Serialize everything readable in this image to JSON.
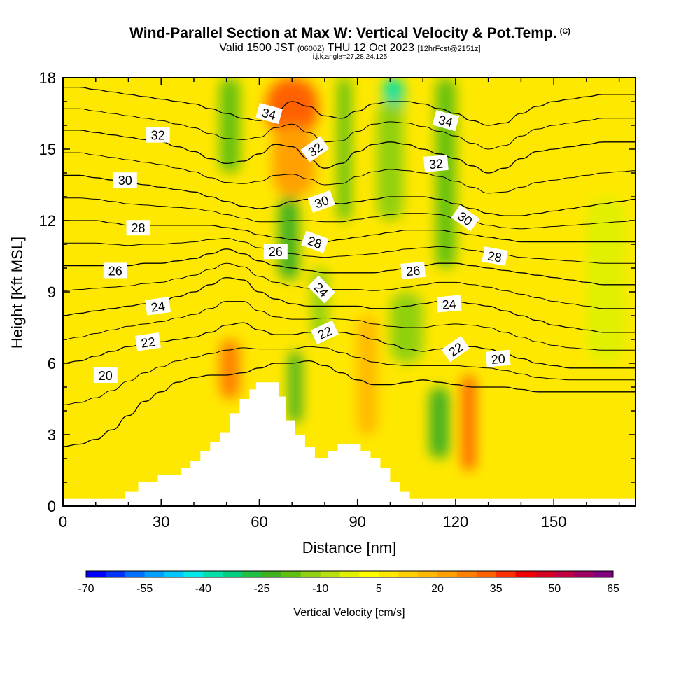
{
  "header": {
    "title": "Wind-Parallel Section at Max W: Vertical Velocity & Pot.Temp.",
    "title_tag": "(C)",
    "valid_prefix": "Valid 1500 JST",
    "valid_zulu": "(0600Z)",
    "valid_date": "THU 12 Oct 2023",
    "forecast_info": "[12hrFcst@2151z]",
    "ijk": "i,j,k,angle=27,28,24,125"
  },
  "chart_data": {
    "type": "heatmap",
    "xlabel": "Distance [nm]",
    "ylabel": "Height [Kft MSL]",
    "xlim": [
      0,
      175
    ],
    "ylim": [
      0,
      18
    ],
    "xticks": [
      0,
      30,
      60,
      90,
      120,
      150
    ],
    "yticks": [
      0,
      3,
      6,
      9,
      12,
      15,
      18
    ],
    "colorbar": {
      "label": "Vertical Velocity [cm/s]",
      "tick_labels": [
        "-70",
        "-55",
        "-40",
        "-25",
        "-10",
        "5",
        "20",
        "35",
        "50",
        "65"
      ],
      "min": -70,
      "max": 65,
      "step": 5,
      "colors": [
        "#0000ff",
        "#0033ff",
        "#0070ff",
        "#00a0ff",
        "#00c8ff",
        "#00e8e8",
        "#00e0a8",
        "#00d080",
        "#20c040",
        "#40b020",
        "#60c010",
        "#90d010",
        "#b8e010",
        "#e0f000",
        "#ffff00",
        "#ffe800",
        "#ffd000",
        "#ffb800",
        "#ffa000",
        "#ff8000",
        "#ff6000",
        "#ff3000",
        "#f00000",
        "#d80020",
        "#c00040",
        "#a00060",
        "#800080"
      ]
    },
    "velocity_field": [
      {
        "x": 0,
        "y": 0,
        "w": 175,
        "h": 18,
        "value": 8
      },
      {
        "x": 0,
        "y": 0,
        "w": 45,
        "h": 4.5,
        "value": 6
      },
      {
        "x": 62,
        "y": 15.5,
        "w": 16,
        "h": 2.5,
        "value": 32
      },
      {
        "x": 64,
        "y": 13,
        "w": 13,
        "h": 3,
        "value": 24
      },
      {
        "x": 48,
        "y": 4.5,
        "w": 6,
        "h": 2.5,
        "value": 28
      },
      {
        "x": 122,
        "y": 1.5,
        "w": 4,
        "h": 4,
        "value": 30
      },
      {
        "x": 90,
        "y": 3,
        "w": 6,
        "h": 5,
        "value": 18
      },
      {
        "x": 66,
        "y": 9.5,
        "w": 6,
        "h": 3.5,
        "value": -22
      },
      {
        "x": 48,
        "y": 14,
        "w": 6,
        "h": 4,
        "value": -18
      },
      {
        "x": 84,
        "y": 12,
        "w": 4,
        "h": 6,
        "value": -20
      },
      {
        "x": 98,
        "y": 16.5,
        "w": 6,
        "h": 1.5,
        "value": -40
      },
      {
        "x": 96,
        "y": 12,
        "w": 8,
        "h": 5,
        "value": -15
      },
      {
        "x": 114,
        "y": 10,
        "w": 6,
        "h": 8,
        "value": -20
      },
      {
        "x": 69,
        "y": 3.5,
        "w": 4,
        "h": 3,
        "value": -25
      },
      {
        "x": 112,
        "y": 2,
        "w": 6,
        "h": 3,
        "value": -22
      },
      {
        "x": 100,
        "y": 6,
        "w": 10,
        "h": 3,
        "value": -12
      },
      {
        "x": 76,
        "y": 7,
        "w": 5,
        "h": 3,
        "value": -15
      },
      {
        "x": 160,
        "y": 6,
        "w": 12,
        "h": 7,
        "value": -5
      }
    ],
    "theta_contours": [
      {
        "level": 20,
        "label": "20",
        "y": [
          2.5,
          2.6,
          2.8,
          3.2,
          3.8,
          4.4,
          4.8,
          5.2,
          5.4,
          5.5,
          5.5,
          5.6,
          5.8,
          6.0,
          6.0,
          6.1,
          5.9,
          5.6,
          5.3,
          5.1,
          5.1,
          5.2,
          5.3,
          5.2,
          5.1,
          5.0,
          5.0,
          5.0,
          4.9,
          4.8,
          4.8,
          4.8,
          4.8,
          4.8,
          4.8,
          4.8
        ]
      },
      {
        "level": 22,
        "label": "22",
        "y": [
          6.0,
          6.1,
          6.3,
          6.5,
          6.7,
          6.8,
          6.9,
          7.0,
          7.1,
          7.3,
          7.6,
          7.7,
          7.4,
          7.2,
          7.2,
          7.3,
          7.4,
          7.3,
          7.2,
          7.0,
          6.8,
          6.6,
          6.5,
          6.6,
          6.7,
          6.7,
          6.6,
          6.4,
          6.2,
          6.0,
          5.9,
          5.8,
          5.8,
          5.8,
          5.8,
          5.8
        ]
      },
      {
        "level": 24,
        "label": "24",
        "y": [
          8.0,
          8.1,
          8.2,
          8.3,
          8.4,
          8.5,
          8.6,
          8.8,
          9.0,
          9.3,
          9.6,
          9.5,
          9.0,
          8.7,
          8.5,
          8.4,
          8.4,
          8.4,
          8.4,
          8.3,
          8.3,
          8.4,
          8.5,
          8.6,
          8.6,
          8.5,
          8.4,
          8.2,
          8.0,
          7.8,
          7.6,
          7.5,
          7.4,
          7.3,
          7.3,
          7.3
        ]
      },
      {
        "level": 26,
        "label": "26",
        "y": [
          10.1,
          10.1,
          10.1,
          10.1,
          10.1,
          10.2,
          10.2,
          10.3,
          10.4,
          10.6,
          10.8,
          10.6,
          10.3,
          10.1,
          10.0,
          9.9,
          9.8,
          9.8,
          9.8,
          9.8,
          9.9,
          10.0,
          10.1,
          10.2,
          10.2,
          10.1,
          10.0,
          9.9,
          9.8,
          9.7,
          9.6,
          9.5,
          9.4,
          9.3,
          9.3,
          9.3
        ]
      },
      {
        "level": 28,
        "label": "28",
        "y": [
          12.0,
          12.0,
          12.0,
          11.9,
          11.8,
          11.8,
          11.8,
          11.8,
          11.8,
          11.8,
          11.7,
          11.6,
          11.4,
          11.3,
          11.2,
          11.1,
          11.1,
          11.2,
          11.3,
          11.4,
          11.5,
          11.6,
          11.6,
          11.6,
          11.5,
          11.4,
          11.3,
          11.2,
          11.1,
          11.1,
          11.1,
          11.1,
          11.1,
          11.1,
          11.1,
          11.1
        ]
      },
      {
        "level": 30,
        "label": "30",
        "y": [
          13.9,
          13.9,
          13.8,
          13.7,
          13.6,
          13.5,
          13.4,
          13.3,
          13.2,
          13.0,
          12.8,
          12.6,
          12.5,
          12.6,
          12.8,
          12.9,
          12.8,
          12.7,
          12.8,
          12.9,
          13.0,
          13.0,
          13.0,
          12.9,
          12.7,
          12.5,
          12.3,
          12.2,
          12.2,
          12.3,
          12.4,
          12.5,
          12.6,
          12.7,
          12.8,
          12.9
        ]
      },
      {
        "level": 32,
        "label": "32",
        "y": [
          15.8,
          15.8,
          15.7,
          15.6,
          15.5,
          15.4,
          15.3,
          15.1,
          14.9,
          14.6,
          14.4,
          14.5,
          14.8,
          15.2,
          15.1,
          14.6,
          14.2,
          14.4,
          14.9,
          15.2,
          15.3,
          15.2,
          15.0,
          14.8,
          14.6,
          14.3,
          14.0,
          14.2,
          14.6,
          14.9,
          15.0,
          15.1,
          15.2,
          15.3,
          15.3,
          15.3
        ]
      },
      {
        "level": 34,
        "label": "34",
        "y": [
          17.6,
          17.6,
          17.5,
          17.4,
          17.3,
          17.2,
          17.1,
          17.0,
          16.9,
          16.7,
          16.5,
          16.3,
          16.2,
          16.6,
          17.0,
          16.8,
          16.4,
          16.3,
          16.6,
          16.9,
          17.0,
          17.0,
          16.9,
          16.7,
          16.5,
          16.2,
          16.0,
          16.1,
          16.5,
          16.8,
          17.0,
          17.1,
          17.2,
          17.3,
          17.3,
          17.3
        ]
      }
    ],
    "contour_labels": [
      {
        "text": "20",
        "x": 13,
        "y": 5.5,
        "angle": 0
      },
      {
        "text": "22",
        "x": 26,
        "y": 6.9,
        "angle": -8
      },
      {
        "text": "24",
        "x": 29,
        "y": 8.4,
        "angle": -8
      },
      {
        "text": "26",
        "x": 16,
        "y": 9.9,
        "angle": 0
      },
      {
        "text": "28",
        "x": 23,
        "y": 11.7,
        "angle": 0
      },
      {
        "text": "30",
        "x": 19,
        "y": 13.7,
        "angle": 0
      },
      {
        "text": "32",
        "x": 29,
        "y": 15.6,
        "angle": 0
      },
      {
        "text": "20",
        "x": 133,
        "y": 6.2,
        "angle": -5
      },
      {
        "text": "22",
        "x": 80,
        "y": 7.3,
        "angle": -25
      },
      {
        "text": "22",
        "x": 120,
        "y": 6.6,
        "angle": -35
      },
      {
        "text": "24",
        "x": 79,
        "y": 9.1,
        "angle": 45
      },
      {
        "text": "24",
        "x": 118,
        "y": 8.5,
        "angle": -5
      },
      {
        "text": "26",
        "x": 65,
        "y": 10.7,
        "angle": 0
      },
      {
        "text": "26",
        "x": 107,
        "y": 9.9,
        "angle": -5
      },
      {
        "text": "28",
        "x": 77,
        "y": 11.1,
        "angle": 20
      },
      {
        "text": "28",
        "x": 132,
        "y": 10.5,
        "angle": 10
      },
      {
        "text": "30",
        "x": 79,
        "y": 12.8,
        "angle": -20
      },
      {
        "text": "30",
        "x": 123,
        "y": 12.1,
        "angle": 35
      },
      {
        "text": "32",
        "x": 77,
        "y": 15.0,
        "angle": -35
      },
      {
        "text": "32",
        "x": 114,
        "y": 14.4,
        "angle": -5
      },
      {
        "text": "34",
        "x": 63,
        "y": 16.5,
        "angle": 15
      },
      {
        "text": "34",
        "x": 117,
        "y": 16.2,
        "angle": 15
      }
    ],
    "terrain": [
      {
        "x": 0,
        "height": 0.3
      },
      {
        "x": 19,
        "height": 0.3
      },
      {
        "x": 19,
        "height": 0.6
      },
      {
        "x": 23,
        "height": 0.6
      },
      {
        "x": 23,
        "height": 1.0
      },
      {
        "x": 29,
        "height": 1.0
      },
      {
        "x": 29,
        "height": 1.3
      },
      {
        "x": 36,
        "height": 1.3
      },
      {
        "x": 36,
        "height": 1.6
      },
      {
        "x": 39,
        "height": 1.6
      },
      {
        "x": 39,
        "height": 1.9
      },
      {
        "x": 42,
        "height": 1.9
      },
      {
        "x": 42,
        "height": 2.3
      },
      {
        "x": 45,
        "height": 2.3
      },
      {
        "x": 45,
        "height": 2.7
      },
      {
        "x": 48,
        "height": 2.7
      },
      {
        "x": 48,
        "height": 3.1
      },
      {
        "x": 51,
        "height": 3.1
      },
      {
        "x": 51,
        "height": 3.9
      },
      {
        "x": 54,
        "height": 3.9
      },
      {
        "x": 54,
        "height": 4.5
      },
      {
        "x": 57,
        "height": 4.5
      },
      {
        "x": 57,
        "height": 4.9
      },
      {
        "x": 59,
        "height": 4.9
      },
      {
        "x": 59,
        "height": 5.2
      },
      {
        "x": 66,
        "height": 5.2
      },
      {
        "x": 66,
        "height": 4.6
      },
      {
        "x": 68,
        "height": 4.6
      },
      {
        "x": 68,
        "height": 3.6
      },
      {
        "x": 71,
        "height": 3.6
      },
      {
        "x": 71,
        "height": 3.0
      },
      {
        "x": 74,
        "height": 3.0
      },
      {
        "x": 74,
        "height": 2.5
      },
      {
        "x": 77,
        "height": 2.5
      },
      {
        "x": 77,
        "height": 2.0
      },
      {
        "x": 81,
        "height": 2.0
      },
      {
        "x": 81,
        "height": 2.3
      },
      {
        "x": 84,
        "height": 2.3
      },
      {
        "x": 84,
        "height": 2.6
      },
      {
        "x": 91,
        "height": 2.6
      },
      {
        "x": 91,
        "height": 2.3
      },
      {
        "x": 94,
        "height": 2.3
      },
      {
        "x": 94,
        "height": 2.0
      },
      {
        "x": 97,
        "height": 2.0
      },
      {
        "x": 97,
        "height": 1.6
      },
      {
        "x": 100,
        "height": 1.6
      },
      {
        "x": 100,
        "height": 1.0
      },
      {
        "x": 103,
        "height": 1.0
      },
      {
        "x": 103,
        "height": 0.6
      },
      {
        "x": 106,
        "height": 0.6
      },
      {
        "x": 106,
        "height": 0.3
      },
      {
        "x": 175,
        "height": 0.3
      }
    ]
  }
}
